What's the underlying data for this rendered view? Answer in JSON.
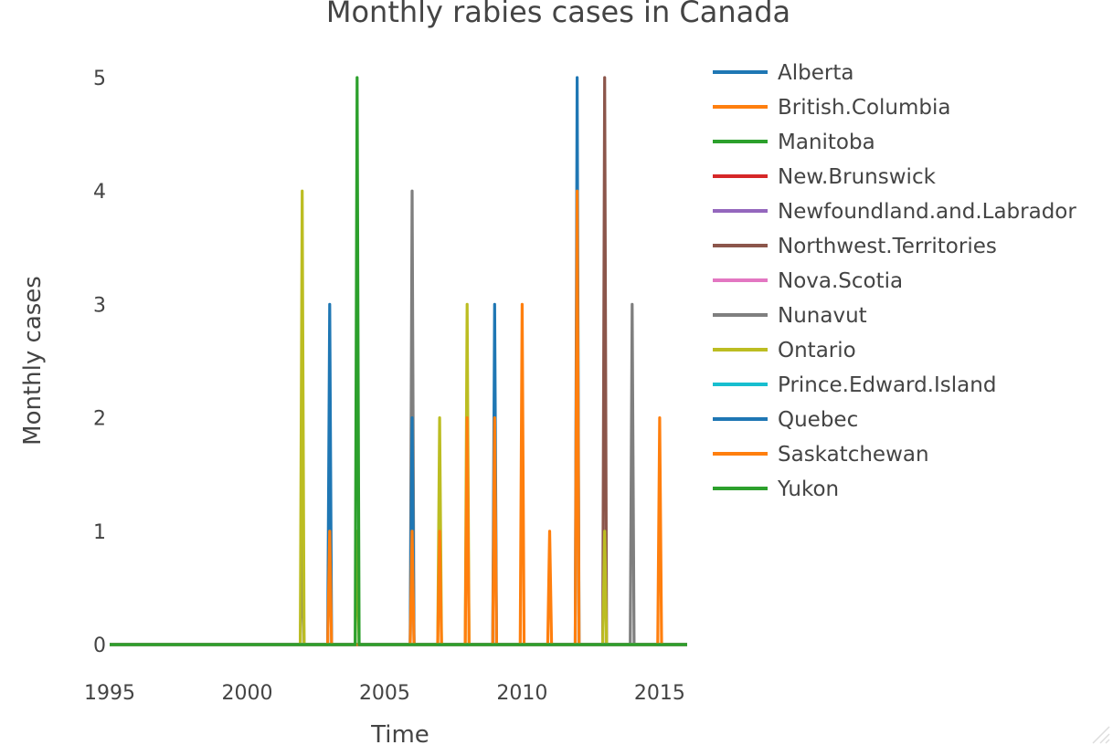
{
  "chart_data": {
    "type": "line",
    "title": "Monthly rabies cases in Canada",
    "xlabel": "Time",
    "ylabel": "Monthly cases",
    "xlim": [
      1995,
      2016.2
    ],
    "ylim": [
      0,
      5.2
    ],
    "x_ticks": [
      1995,
      2000,
      2005,
      2010,
      2015
    ],
    "y_ticks": [
      0,
      1,
      2,
      3,
      4,
      5
    ],
    "grid": false,
    "legend_position": "right",
    "series": [
      {
        "name": "Alberta",
        "color": "#1f77b4",
        "peaks": []
      },
      {
        "name": "British.Columbia",
        "color": "#ff7f0e",
        "peaks": []
      },
      {
        "name": "Manitoba",
        "color": "#2ca02c",
        "peaks": []
      },
      {
        "name": "New.Brunswick",
        "color": "#d62728",
        "peaks": []
      },
      {
        "name": "Newfoundland.and.Labrador",
        "color": "#9467bd",
        "peaks": []
      },
      {
        "name": "Northwest.Territories",
        "color": "#8c564b",
        "peaks": [
          [
            2013,
            5
          ]
        ]
      },
      {
        "name": "Nova.Scotia",
        "color": "#e377c2",
        "peaks": []
      },
      {
        "name": "Nunavut",
        "color": "#7f7f7f",
        "peaks": [
          [
            2002,
            1
          ],
          [
            2006,
            4
          ],
          [
            2014,
            3
          ]
        ]
      },
      {
        "name": "Ontario",
        "color": "#bcbd22",
        "peaks": [
          [
            2002,
            4
          ],
          [
            2004,
            1
          ],
          [
            2007,
            2
          ],
          [
            2008,
            3
          ],
          [
            2013,
            1
          ]
        ]
      },
      {
        "name": "Prince.Edward.Island",
        "color": "#17becf",
        "peaks": []
      },
      {
        "name": "Quebec",
        "color": "#1f77b4",
        "peaks": [
          [
            2003,
            3
          ],
          [
            2006,
            2
          ],
          [
            2009,
            3
          ],
          [
            2012,
            5
          ]
        ]
      },
      {
        "name": "Saskatchewan",
        "color": "#ff7f0e",
        "peaks": [
          [
            2003,
            1
          ],
          [
            2006,
            1
          ],
          [
            2007,
            1
          ],
          [
            2008,
            2
          ],
          [
            2009,
            2
          ],
          [
            2010,
            3
          ],
          [
            2011,
            1
          ],
          [
            2012,
            4
          ],
          [
            2015,
            2
          ]
        ]
      },
      {
        "name": "Yukon",
        "color": "#2ca02c",
        "peaks": [
          [
            2004,
            5
          ]
        ]
      }
    ]
  }
}
